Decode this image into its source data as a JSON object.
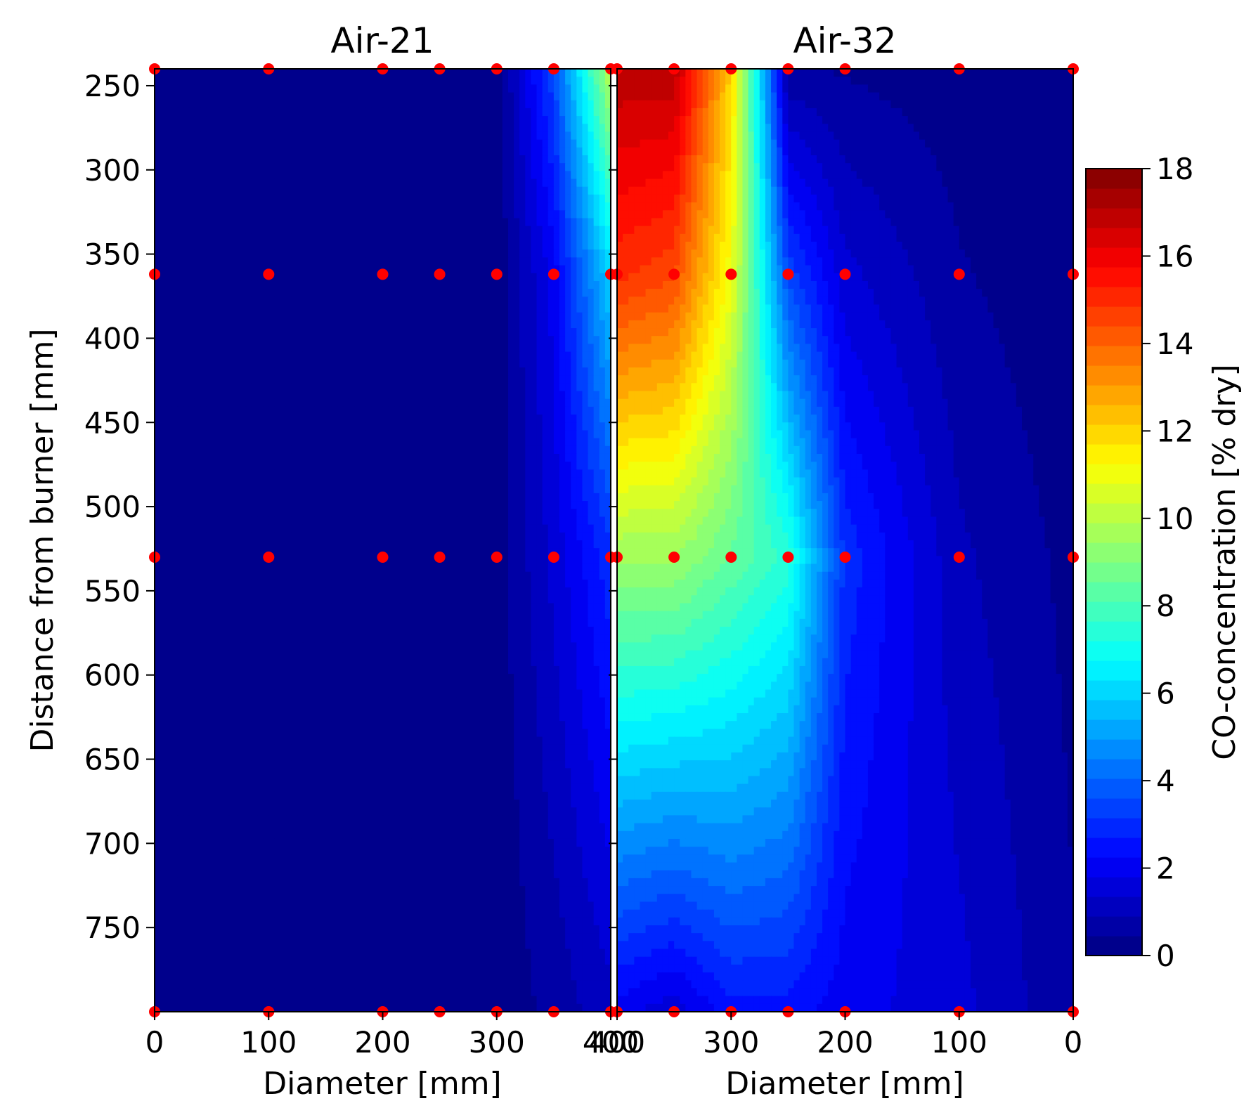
{
  "chart_data": [
    {
      "type": "heatmap",
      "title": "Air-21",
      "xlabel": "Diameter [mm]",
      "ylabel": "Distance from burner [mm]",
      "xlim": [
        0,
        400
      ],
      "ylim": [
        240,
        800
      ],
      "y_inverted": true,
      "x_ticks": [
        "0",
        "100",
        "200",
        "300",
        "400"
      ],
      "y_ticks": [
        "250",
        "300",
        "350",
        "400",
        "450",
        "500",
        "550",
        "600",
        "650",
        "700",
        "750"
      ],
      "grid": false,
      "x": [
        0,
        100,
        200,
        250,
        300,
        350,
        400
      ],
      "y": [
        240,
        362,
        530,
        800
      ],
      "z": [
        [
          0,
          0,
          0,
          0,
          0.1,
          3.5,
          10
        ],
        [
          0,
          0,
          0,
          0,
          0.1,
          2.0,
          6
        ],
        [
          0,
          0,
          0,
          0,
          0.2,
          1.5,
          3
        ],
        [
          0,
          0,
          0,
          0,
          0.1,
          0.6,
          1.2
        ]
      ],
      "markers": {
        "color": "#ff0000",
        "points": [
          [
            0,
            240
          ],
          [
            100,
            240
          ],
          [
            200,
            240
          ],
          [
            250,
            240
          ],
          [
            300,
            240
          ],
          [
            350,
            240
          ],
          [
            400,
            240
          ],
          [
            0,
            362
          ],
          [
            100,
            362
          ],
          [
            200,
            362
          ],
          [
            250,
            362
          ],
          [
            300,
            362
          ],
          [
            350,
            362
          ],
          [
            400,
            362
          ],
          [
            0,
            530
          ],
          [
            100,
            530
          ],
          [
            200,
            530
          ],
          [
            250,
            530
          ],
          [
            300,
            530
          ],
          [
            350,
            530
          ],
          [
            400,
            530
          ],
          [
            0,
            800
          ],
          [
            100,
            800
          ],
          [
            200,
            800
          ],
          [
            250,
            800
          ],
          [
            300,
            800
          ],
          [
            350,
            800
          ],
          [
            400,
            800
          ]
        ]
      }
    },
    {
      "type": "heatmap",
      "title": "Air-32",
      "xlabel": "Diameter [mm]",
      "ylabel": "",
      "xlim": [
        400,
        0
      ],
      "ylim": [
        240,
        800
      ],
      "y_inverted": true,
      "x_reversed": true,
      "x_ticks": [
        "400",
        "300",
        "200",
        "100",
        "0"
      ],
      "grid": false,
      "x": [
        400,
        350,
        300,
        250,
        200,
        100,
        0
      ],
      "y": [
        240,
        362,
        530,
        800
      ],
      "z": [
        [
          17,
          17,
          12,
          0.5,
          0.4,
          0.2,
          0.1
        ],
        [
          15,
          14.5,
          11,
          3.5,
          1.5,
          0.5,
          0.1
        ],
        [
          9.5,
          9.5,
          8.5,
          7.5,
          3.0,
          1.0,
          0.3
        ],
        [
          2.0,
          1.5,
          2.5,
          2.5,
          2.0,
          1.5,
          0.5
        ]
      ],
      "markers": {
        "color": "#ff0000",
        "points": [
          [
            400,
            240
          ],
          [
            350,
            240
          ],
          [
            300,
            240
          ],
          [
            250,
            240
          ],
          [
            200,
            240
          ],
          [
            100,
            240
          ],
          [
            0,
            240
          ],
          [
            400,
            362
          ],
          [
            350,
            362
          ],
          [
            300,
            362
          ],
          [
            250,
            362
          ],
          [
            200,
            362
          ],
          [
            100,
            362
          ],
          [
            0,
            362
          ],
          [
            400,
            530
          ],
          [
            350,
            530
          ],
          [
            300,
            530
          ],
          [
            250,
            530
          ],
          [
            200,
            530
          ],
          [
            100,
            530
          ],
          [
            0,
            530
          ],
          [
            400,
            800
          ],
          [
            350,
            800
          ],
          [
            300,
            800
          ],
          [
            250,
            800
          ],
          [
            200,
            800
          ],
          [
            100,
            800
          ],
          [
            0,
            800
          ]
        ]
      }
    }
  ],
  "colorbar": {
    "label": "CO-concentration [% dry]",
    "min": 0,
    "max": 18,
    "levels": 40,
    "colormap": "jet",
    "ticks": [
      "0",
      "2",
      "4",
      "6",
      "8",
      "10",
      "12",
      "14",
      "16",
      "18"
    ]
  }
}
